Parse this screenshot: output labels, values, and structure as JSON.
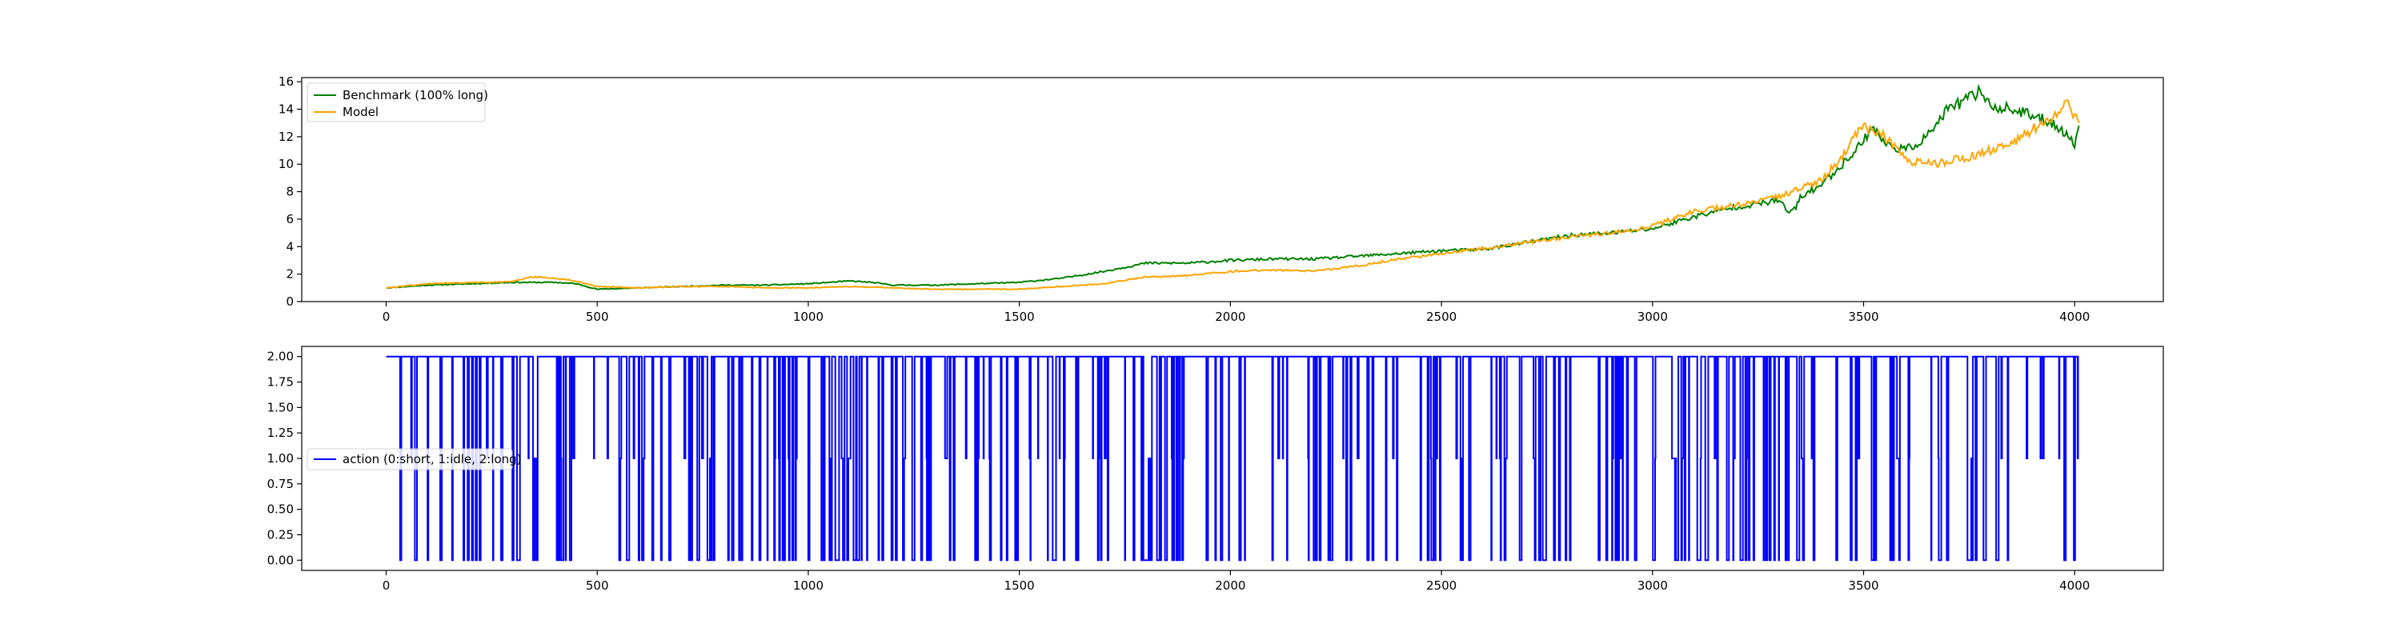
{
  "chart_data": [
    {
      "type": "line",
      "title": "",
      "xlabel": "",
      "ylabel": "",
      "xlim": [
        -200,
        4210
      ],
      "ylim": [
        0,
        16.3
      ],
      "grid": false,
      "legend_placement": "upper-left",
      "x_ticks": [
        0,
        500,
        1000,
        1500,
        2000,
        2500,
        3000,
        3500,
        4000
      ],
      "y_ticks": [
        0,
        2,
        4,
        6,
        8,
        10,
        12,
        14,
        16
      ],
      "series": [
        {
          "name": "Benchmark (100% long)",
          "color": "#008000",
          "x": [
            0,
            100,
            200,
            300,
            400,
            450,
            500,
            600,
            700,
            800,
            900,
            1000,
            1100,
            1150,
            1200,
            1300,
            1400,
            1500,
            1600,
            1700,
            1800,
            1900,
            2000,
            2100,
            2200,
            2300,
            2400,
            2500,
            2600,
            2700,
            2800,
            2900,
            3000,
            3100,
            3200,
            3250,
            3300,
            3320,
            3340,
            3350,
            3400,
            3450,
            3500,
            3520,
            3550,
            3600,
            3650,
            3700,
            3750,
            3780,
            3800,
            3850,
            3900,
            3950,
            4000,
            4010
          ],
          "y": [
            1.0,
            1.2,
            1.3,
            1.4,
            1.4,
            1.3,
            0.9,
            1.0,
            1.1,
            1.2,
            1.2,
            1.3,
            1.5,
            1.4,
            1.2,
            1.2,
            1.3,
            1.4,
            1.7,
            2.2,
            2.8,
            2.8,
            3.0,
            3.1,
            3.1,
            3.3,
            3.5,
            3.7,
            3.8,
            4.3,
            4.8,
            5.0,
            5.3,
            6.2,
            6.9,
            7.1,
            7.4,
            6.5,
            6.8,
            7.6,
            8.5,
            10.0,
            11.7,
            12.8,
            11.5,
            11.0,
            12.0,
            14.0,
            14.8,
            15.4,
            14.2,
            14.0,
            13.5,
            13.0,
            11.5,
            12.8
          ]
        },
        {
          "name": "Model",
          "color": "#ffa500",
          "x": [
            0,
            100,
            200,
            250,
            300,
            350,
            400,
            450,
            500,
            600,
            700,
            800,
            900,
            1000,
            1100,
            1200,
            1300,
            1400,
            1500,
            1600,
            1700,
            1800,
            1900,
            2000,
            2100,
            2200,
            2300,
            2400,
            2500,
            2600,
            2700,
            2800,
            2900,
            3000,
            3100,
            3200,
            3300,
            3400,
            3450,
            3480,
            3500,
            3550,
            3600,
            3650,
            3700,
            3750,
            3800,
            3850,
            3900,
            3950,
            3980,
            4000,
            4010
          ],
          "y": [
            1.0,
            1.3,
            1.4,
            1.4,
            1.5,
            1.8,
            1.7,
            1.5,
            1.1,
            1.0,
            1.1,
            1.1,
            1.0,
            1.0,
            1.1,
            1.0,
            0.9,
            0.9,
            0.9,
            1.1,
            1.3,
            1.8,
            1.9,
            2.2,
            2.3,
            2.2,
            2.6,
            3.1,
            3.5,
            3.9,
            4.3,
            4.7,
            5.0,
            5.5,
            6.6,
            7.0,
            7.6,
            8.9,
            10.5,
            12.0,
            12.8,
            12.0,
            10.3,
            10.0,
            10.2,
            10.5,
            11.0,
            11.5,
            12.5,
            13.5,
            14.8,
            13.5,
            13.0
          ]
        }
      ]
    },
    {
      "type": "line",
      "title": "",
      "xlabel": "",
      "ylabel": "",
      "xlim": [
        -200,
        4210
      ],
      "ylim": [
        -0.1,
        2.1
      ],
      "grid": false,
      "legend_placement": "center-left",
      "x_ticks": [
        0,
        500,
        1000,
        1500,
        2000,
        2500,
        3000,
        3500,
        4000
      ],
      "y_ticks": [
        "0.00",
        "0.25",
        "0.50",
        "0.75",
        "1.00",
        "1.25",
        "1.50",
        "1.75",
        "2.00"
      ],
      "series": [
        {
          "name": "action (0:short, 1:idle, 2:long)",
          "color": "#0000ff",
          "values_description_levels": [
            0,
            1,
            2
          ],
          "x_range": [
            0,
            4010
          ],
          "seed": 7
        }
      ]
    }
  ]
}
